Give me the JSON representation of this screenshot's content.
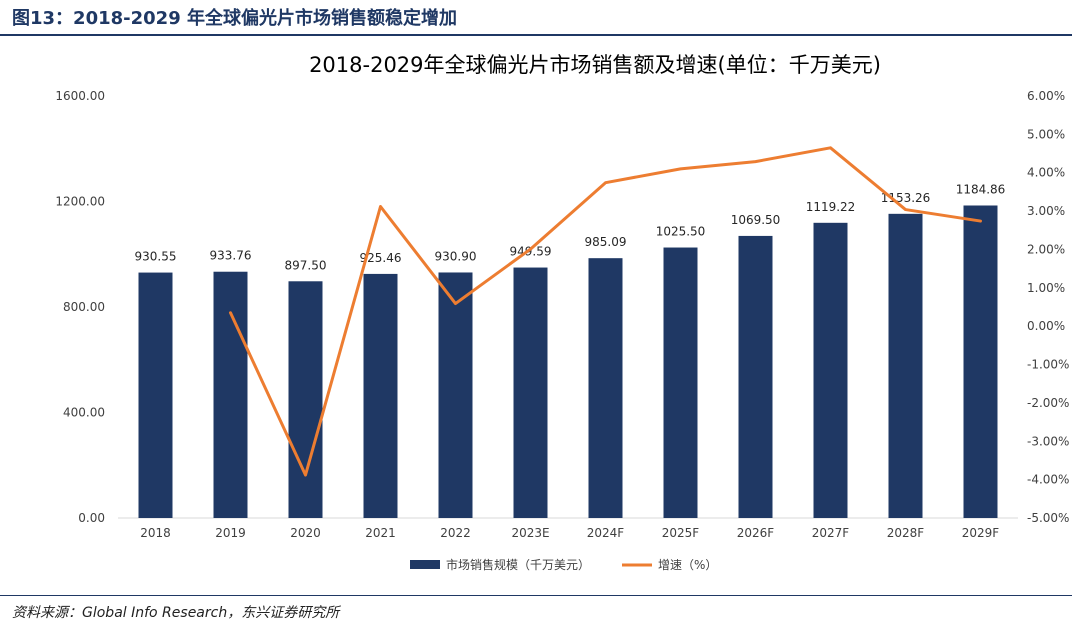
{
  "figure_caption": "图13：2018-2029 年全球偏光片市场销售额稳定增加",
  "source_note": "资料来源：Global Info Research，东兴证券研究所",
  "chart_data": {
    "type": "bar",
    "title": "2018-2029年全球偏光片市场销售额及增速(单位：千万美元)",
    "categories": [
      "2018",
      "2019",
      "2020",
      "2021",
      "2022",
      "2023E",
      "2024F",
      "2025F",
      "2026F",
      "2027F",
      "2028F",
      "2029F"
    ],
    "series": [
      {
        "name": "市场销售规模（千万美元）",
        "type": "bar",
        "axis": "left",
        "color": "#1f3864",
        "values": [
          930.55,
          933.76,
          897.5,
          925.46,
          930.9,
          949.59,
          985.09,
          1025.5,
          1069.5,
          1119.22,
          1153.26,
          1184.86
        ],
        "labels": [
          "930.55",
          "933.76",
          "897.50",
          "925.46",
          "930.90",
          "949.59",
          "985.09",
          "1025.50",
          "1069.50",
          "1119.22",
          "1153.26",
          "1184.86"
        ]
      },
      {
        "name": "增速（%）",
        "type": "line",
        "axis": "right",
        "color": "#ed7d31",
        "values": [
          null,
          0.35,
          -3.88,
          3.12,
          0.59,
          2.01,
          3.74,
          4.1,
          4.29,
          4.65,
          3.04,
          2.74
        ]
      }
    ],
    "y_left": {
      "ylim": [
        0,
        1600
      ],
      "ticks": [
        "0.00",
        "400.00",
        "800.00",
        "1200.00",
        "1600.00"
      ],
      "tick_values": [
        0,
        400,
        800,
        1200,
        1600
      ]
    },
    "y_right": {
      "ylim": [
        -5,
        6
      ],
      "ticks": [
        "6.00%",
        "5.00%",
        "4.00%",
        "3.00%",
        "2.00%",
        "1.00%",
        "0.00%",
        "-1.00%",
        "-2.00%",
        "-3.00%",
        "-4.00%",
        "-5.00%"
      ],
      "tick_values": [
        6,
        5,
        4,
        3,
        2,
        1,
        0,
        -1,
        -2,
        -3,
        -4,
        -5
      ]
    },
    "grid": false,
    "legend_position": "bottom"
  }
}
